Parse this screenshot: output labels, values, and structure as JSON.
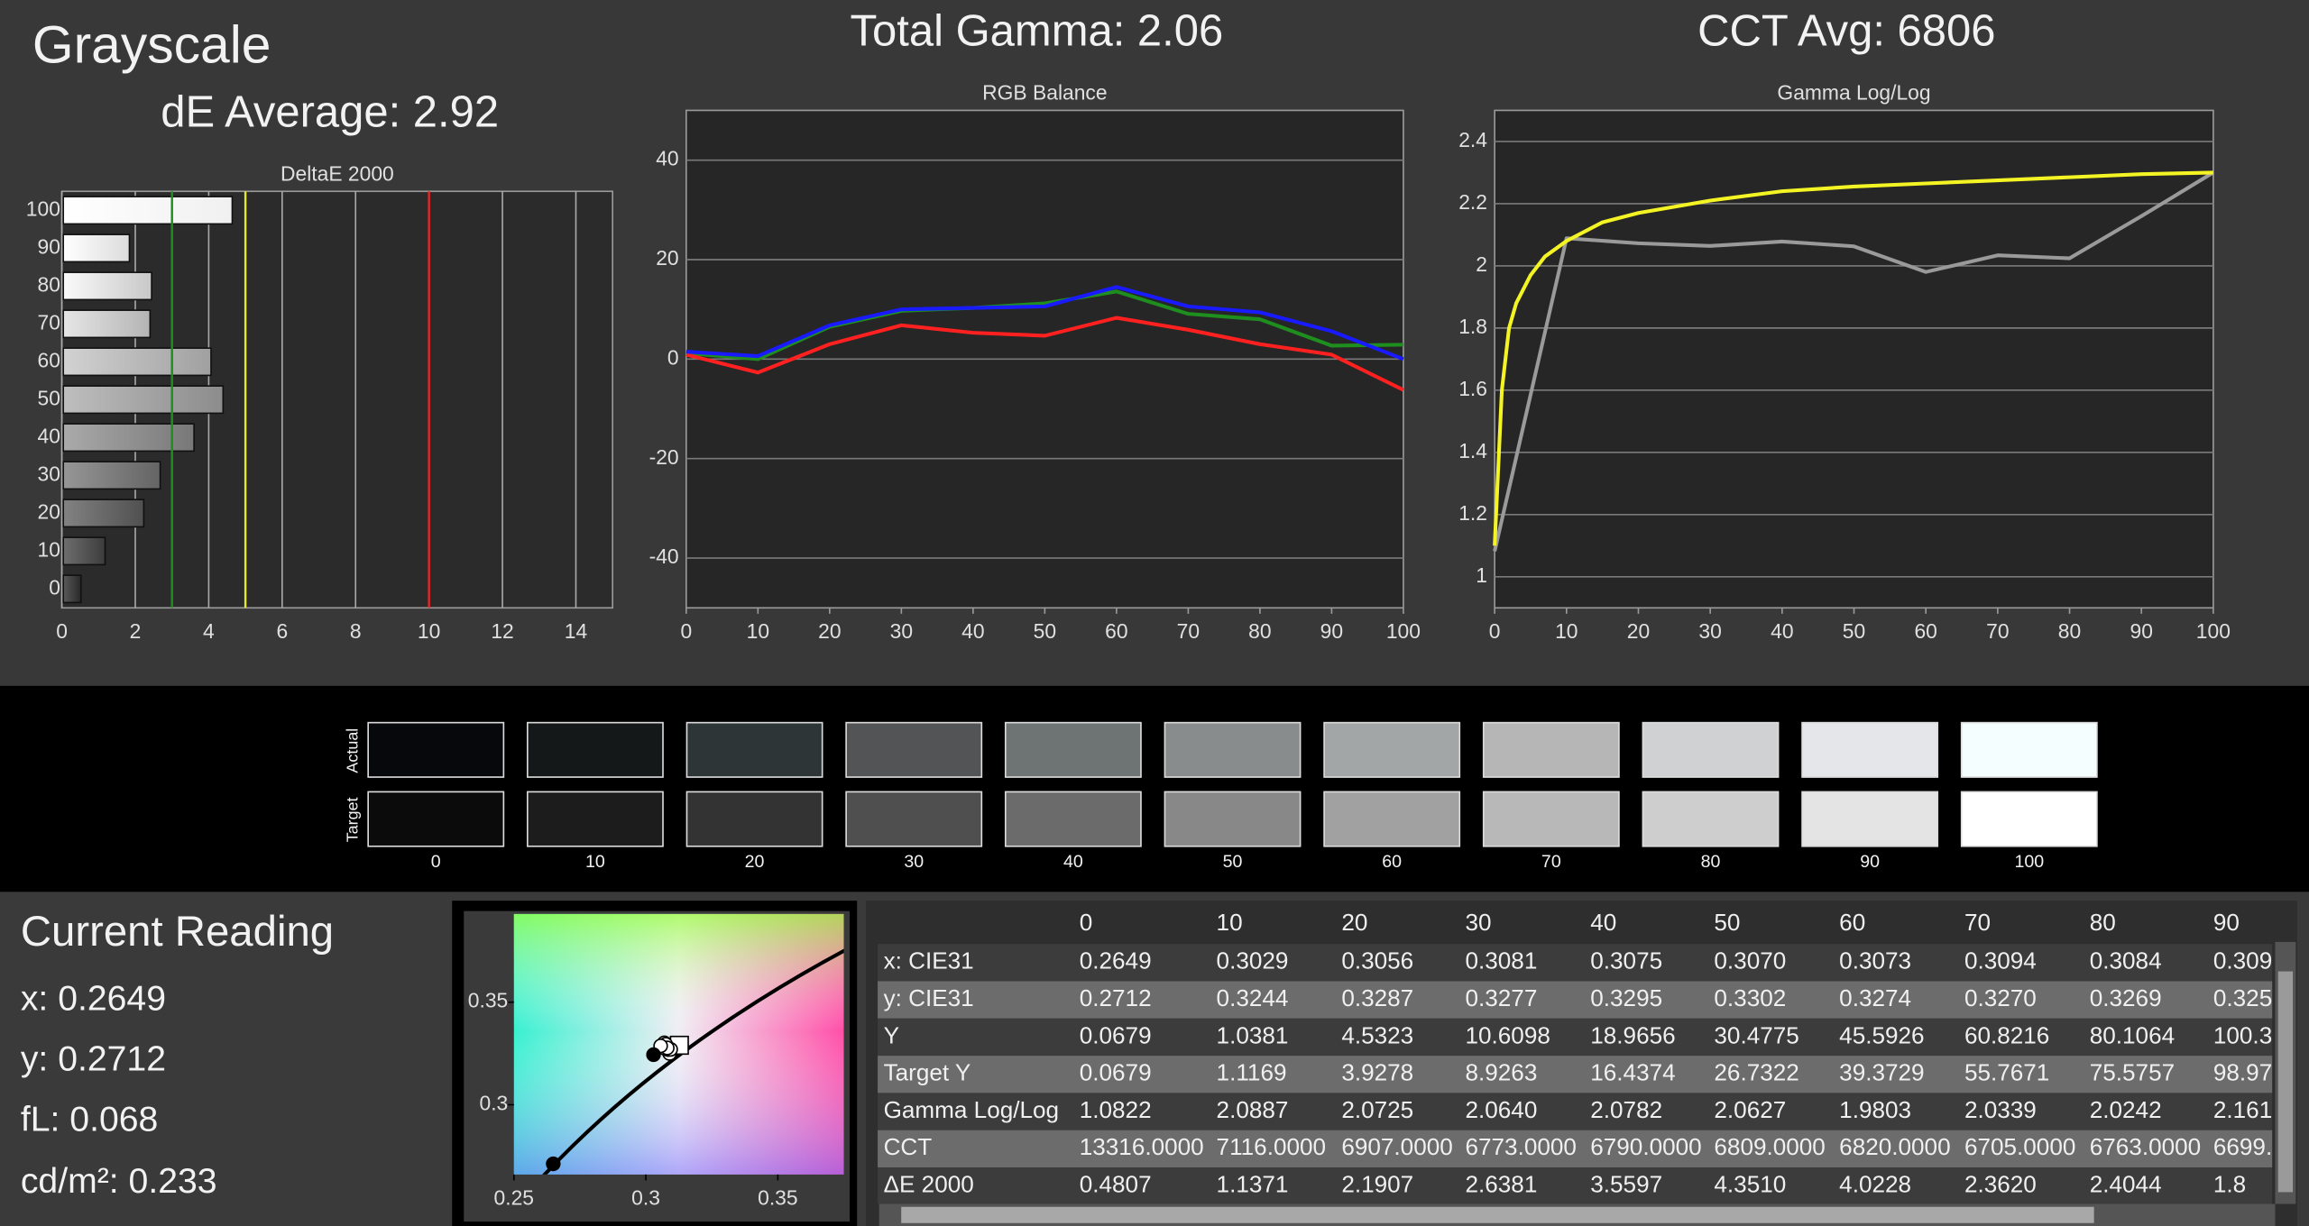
{
  "header": {
    "title": "Grayscale",
    "de_average": "dE Average: 2.92",
    "total_gamma": "Total Gamma: 2.06",
    "cct_avg": "CCT Avg: 6806"
  },
  "chart_data": [
    {
      "type": "bar",
      "title": "DeltaE 2000",
      "categories": [
        "100",
        "90",
        "80",
        "70",
        "60",
        "50",
        "40",
        "30",
        "20",
        "10",
        "0"
      ],
      "values": [
        4.6,
        1.8,
        2.4044,
        2.362,
        4.0228,
        4.351,
        3.5597,
        2.6381,
        2.1907,
        1.1371,
        0.4807
      ],
      "xlim": [
        0,
        15
      ],
      "xticks": [
        0,
        2,
        4,
        6,
        8,
        10,
        12,
        14
      ],
      "grid": true,
      "reference_lines": [
        {
          "value": 3,
          "color": "#1f8f1f"
        },
        {
          "value": 5,
          "color": "#e6e62a"
        },
        {
          "value": 10,
          "color": "#e02828"
        }
      ]
    },
    {
      "type": "line",
      "title": "RGB Balance",
      "x": [
        0,
        10,
        20,
        30,
        40,
        50,
        60,
        70,
        80,
        90,
        100
      ],
      "series": [
        {
          "color": "#1e8f1e",
          "values": [
            1.2,
            0,
            6.5,
            9.7,
            10.3,
            11.2,
            13.6,
            9.1,
            8,
            2.7,
            2.9
          ]
        },
        {
          "color": "#ff2020",
          "values": [
            0.9,
            -2.7,
            3,
            6.8,
            5.3,
            4.7,
            8.3,
            5.9,
            3,
            0.9,
            -6.2
          ]
        },
        {
          "color": "#1a1aff",
          "values": [
            1.5,
            0.6,
            6.8,
            10,
            10.3,
            10.6,
            14.5,
            10.6,
            9.4,
            5.6,
            0
          ]
        }
      ],
      "xlim": [
        0,
        100
      ],
      "xticks": [
        0,
        10,
        20,
        30,
        40,
        50,
        60,
        70,
        80,
        90,
        100
      ],
      "ylim": [
        -50,
        50
      ],
      "yticks": [
        -40,
        -20,
        0,
        20,
        40
      ],
      "grid": true
    },
    {
      "type": "line",
      "title": "Gamma Log/Log",
      "series": [
        {
          "color": "#9a9a9a",
          "x": [
            0,
            10,
            20,
            30,
            40,
            50,
            60,
            70,
            80,
            90,
            100
          ],
          "values": [
            1.0822,
            2.0887,
            2.0725,
            2.064,
            2.0782,
            2.0627,
            1.9803,
            2.0339,
            2.0242,
            2.16,
            2.3
          ]
        },
        {
          "color": "#f4f424",
          "x": [
            0,
            1,
            2,
            3,
            5,
            7,
            10,
            15,
            20,
            30,
            40,
            50,
            60,
            70,
            80,
            90,
            100
          ],
          "values": [
            1.1,
            1.6,
            1.8,
            1.88,
            1.97,
            2.03,
            2.08,
            2.14,
            2.17,
            2.21,
            2.24,
            2.255,
            2.265,
            2.275,
            2.285,
            2.295,
            2.3
          ]
        }
      ],
      "xlim": [
        0,
        100
      ],
      "xticks": [
        0,
        10,
        20,
        30,
        40,
        50,
        60,
        70,
        80,
        90,
        100
      ],
      "ylim": [
        0.9,
        2.5
      ],
      "yticks": [
        1,
        1.2,
        1.4,
        1.6,
        1.8,
        2,
        2.2,
        2.4
      ],
      "grid": true
    },
    {
      "type": "scatter",
      "xlim": [
        0.25,
        0.375
      ],
      "xticks": [
        0.25,
        0.3,
        0.35
      ],
      "ylim": [
        0.266,
        0.393
      ],
      "yticks": [
        0.3,
        0.35
      ],
      "point_colors": [
        "#000000",
        "#000000",
        "#ffffff",
        "#ffffff",
        "#ffffff",
        "#ffffff",
        "#ffffff",
        "#ffffff",
        "#ffffff",
        "#ffffff"
      ],
      "reference": {
        "x": 0.3127,
        "y": 0.329
      }
    }
  ],
  "swatches": {
    "row_labels": [
      "Actual",
      "Target"
    ],
    "labels": [
      "0",
      "10",
      "20",
      "30",
      "40",
      "50",
      "60",
      "70",
      "80",
      "90",
      "100"
    ],
    "actual": [
      "#07080c",
      "#151818",
      "#2e3536",
      "#535455",
      "#6e7373",
      "#898c8c",
      "#a2a6a6",
      "#b6b6b7",
      "#cfd1d3",
      "#e5e6e9",
      "#f4fefe"
    ],
    "target": [
      "#0b0b0b",
      "#1c1c1c",
      "#333333",
      "#4f4f4f",
      "#6b6b6b",
      "#888888",
      "#a1a1a1",
      "#b8b8b8",
      "#cecece",
      "#e4e4e4",
      "#ffffff"
    ]
  },
  "current_reading": {
    "title": "Current Reading",
    "x": "x: 0.2649",
    "y": "y: 0.2712",
    "fl": "fL: 0.068",
    "cdm2": "cd/m²: 0.233"
  },
  "table": {
    "columns": [
      "0",
      "10",
      "20",
      "30",
      "40",
      "50",
      "60",
      "70",
      "80",
      "90"
    ],
    "rows": [
      {
        "label": "x: CIE31",
        "cells": [
          "0.2649",
          "0.3029",
          "0.3056",
          "0.3081",
          "0.3075",
          "0.3070",
          "0.3073",
          "0.3094",
          "0.3084",
          "0.309"
        ]
      },
      {
        "label": "y: CIE31",
        "cells": [
          "0.2712",
          "0.3244",
          "0.3287",
          "0.3277",
          "0.3295",
          "0.3302",
          "0.3274",
          "0.3270",
          "0.3269",
          "0.325"
        ]
      },
      {
        "label": "Y",
        "cells": [
          "0.0679",
          "1.0381",
          "4.5323",
          "10.6098",
          "18.9656",
          "30.4775",
          "45.5926",
          "60.8216",
          "80.1064",
          "100.3"
        ]
      },
      {
        "label": "Target Y",
        "cells": [
          "0.0679",
          "1.1169",
          "3.9278",
          "8.9263",
          "16.4374",
          "26.7322",
          "39.3729",
          "55.7671",
          "75.5757",
          "98.97"
        ]
      },
      {
        "label": "Gamma Log/Log",
        "cells": [
          "1.0822",
          "2.0887",
          "2.0725",
          "2.0640",
          "2.0782",
          "2.0627",
          "1.9803",
          "2.0339",
          "2.0242",
          "2.161"
        ]
      },
      {
        "label": "CCT",
        "cells": [
          "13316.0000",
          "7116.0000",
          "6907.0000",
          "6773.0000",
          "6790.0000",
          "6809.0000",
          "6820.0000",
          "6705.0000",
          "6763.0000",
          "6699."
        ]
      },
      {
        "label": "ΔE 2000",
        "cells": [
          "0.4807",
          "1.1371",
          "2.1907",
          "2.6381",
          "3.5597",
          "4.3510",
          "4.0228",
          "2.3620",
          "2.4044",
          "1.8"
        ]
      }
    ]
  }
}
